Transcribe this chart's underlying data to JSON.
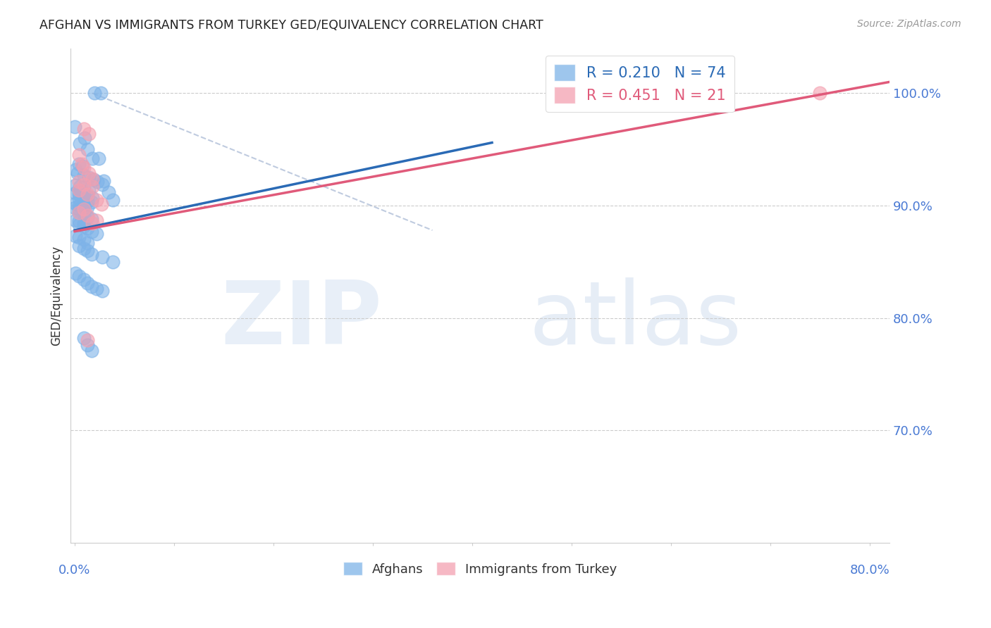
{
  "title": "AFGHAN VS IMMIGRANTS FROM TURKEY GED/EQUIVALENCY CORRELATION CHART",
  "source": "Source: ZipAtlas.com",
  "ylabel": "GED/Equivalency",
  "ytick_labels": [
    "100.0%",
    "90.0%",
    "80.0%",
    "70.0%"
  ],
  "ytick_values": [
    1.0,
    0.9,
    0.8,
    0.7
  ],
  "y_min": 0.6,
  "y_max": 1.04,
  "x_min": -0.004,
  "x_max": 0.82,
  "afghan_color": "#7eb3e8",
  "turkey_color": "#f4a0b0",
  "afghan_line_color": "#2a6ab5",
  "turkey_line_color": "#e05a7a",
  "diag_line_color": "#b0bfd8",
  "legend_color_afghan": "#7eb3e8",
  "legend_color_turkey": "#f4a0b0",
  "legend_text_color_afghan": "#2a6ab5",
  "legend_text_color_turkey": "#e05a7a",
  "legend_R_afghan": "R = 0.210",
  "legend_N_afghan": "N = 74",
  "legend_R_turkey": "R = 0.451",
  "legend_N_turkey": "N = 21",
  "grid_color": "#cccccc",
  "background_color": "#ffffff",
  "title_color": "#222222",
  "source_color": "#999999",
  "ytick_color": "#4a7ad4",
  "xtick_color": "#4a7ad4",
  "afghan_x": [
    0.02,
    0.026,
    0.0,
    0.01,
    0.005,
    0.013,
    0.018,
    0.004,
    0.008,
    0.001,
    0.003,
    0.009,
    0.014,
    0.019,
    0.023,
    0.028,
    0.001,
    0.005,
    0.009,
    0.014,
    0.004,
    0.008,
    0.001,
    0.004,
    0.009,
    0.013,
    0.018,
    0.004,
    0.009,
    0.013,
    0.017,
    0.001,
    0.004,
    0.009,
    0.013,
    0.0,
    0.004,
    0.009,
    0.024,
    0.029,
    0.034,
    0.038,
    0.004,
    0.009,
    0.013,
    0.017,
    0.001,
    0.004,
    0.009,
    0.004,
    0.009,
    0.013,
    0.017,
    0.022,
    0.001,
    0.004,
    0.009,
    0.013,
    0.004,
    0.009,
    0.013,
    0.017,
    0.028,
    0.038,
    0.001,
    0.004,
    0.009,
    0.013,
    0.017,
    0.022,
    0.028,
    0.009,
    0.013,
    0.017
  ],
  "afghan_y": [
    1.0,
    1.0,
    0.97,
    0.96,
    0.955,
    0.95,
    0.942,
    0.937,
    0.935,
    0.932,
    0.929,
    0.927,
    0.925,
    0.923,
    0.921,
    0.919,
    0.918,
    0.917,
    0.916,
    0.914,
    0.913,
    0.912,
    0.911,
    0.91,
    0.909,
    0.908,
    0.907,
    0.906,
    0.905,
    0.904,
    0.903,
    0.902,
    0.9,
    0.9,
    0.899,
    0.898,
    0.897,
    0.895,
    0.942,
    0.922,
    0.912,
    0.905,
    0.894,
    0.892,
    0.89,
    0.888,
    0.887,
    0.886,
    0.884,
    0.883,
    0.882,
    0.88,
    0.877,
    0.875,
    0.873,
    0.872,
    0.87,
    0.867,
    0.864,
    0.862,
    0.86,
    0.857,
    0.854,
    0.85,
    0.84,
    0.837,
    0.834,
    0.831,
    0.828,
    0.826,
    0.824,
    0.782,
    0.776,
    0.771
  ],
  "turkey_x": [
    0.009,
    0.014,
    0.004,
    0.007,
    0.009,
    0.014,
    0.018,
    0.004,
    0.009,
    0.018,
    0.004,
    0.013,
    0.022,
    0.027,
    0.009,
    0.004,
    0.013,
    0.022,
    0.018,
    0.75,
    0.013
  ],
  "turkey_y": [
    0.968,
    0.964,
    0.945,
    0.937,
    0.934,
    0.929,
    0.924,
    0.921,
    0.919,
    0.917,
    0.914,
    0.91,
    0.905,
    0.901,
    0.897,
    0.894,
    0.891,
    0.887,
    0.884,
    1.0,
    0.78
  ],
  "afghan_trend_x": [
    0.0,
    0.42
  ],
  "afghan_trend_y": [
    0.878,
    0.956
  ],
  "turkey_trend_x": [
    0.0,
    0.82
  ],
  "turkey_trend_y": [
    0.877,
    1.01
  ],
  "diag_trend_x": [
    0.018,
    0.36
  ],
  "diag_trend_y": [
    1.0,
    0.878
  ],
  "watermark_zip": "ZIP",
  "watermark_atlas": "atlas"
}
